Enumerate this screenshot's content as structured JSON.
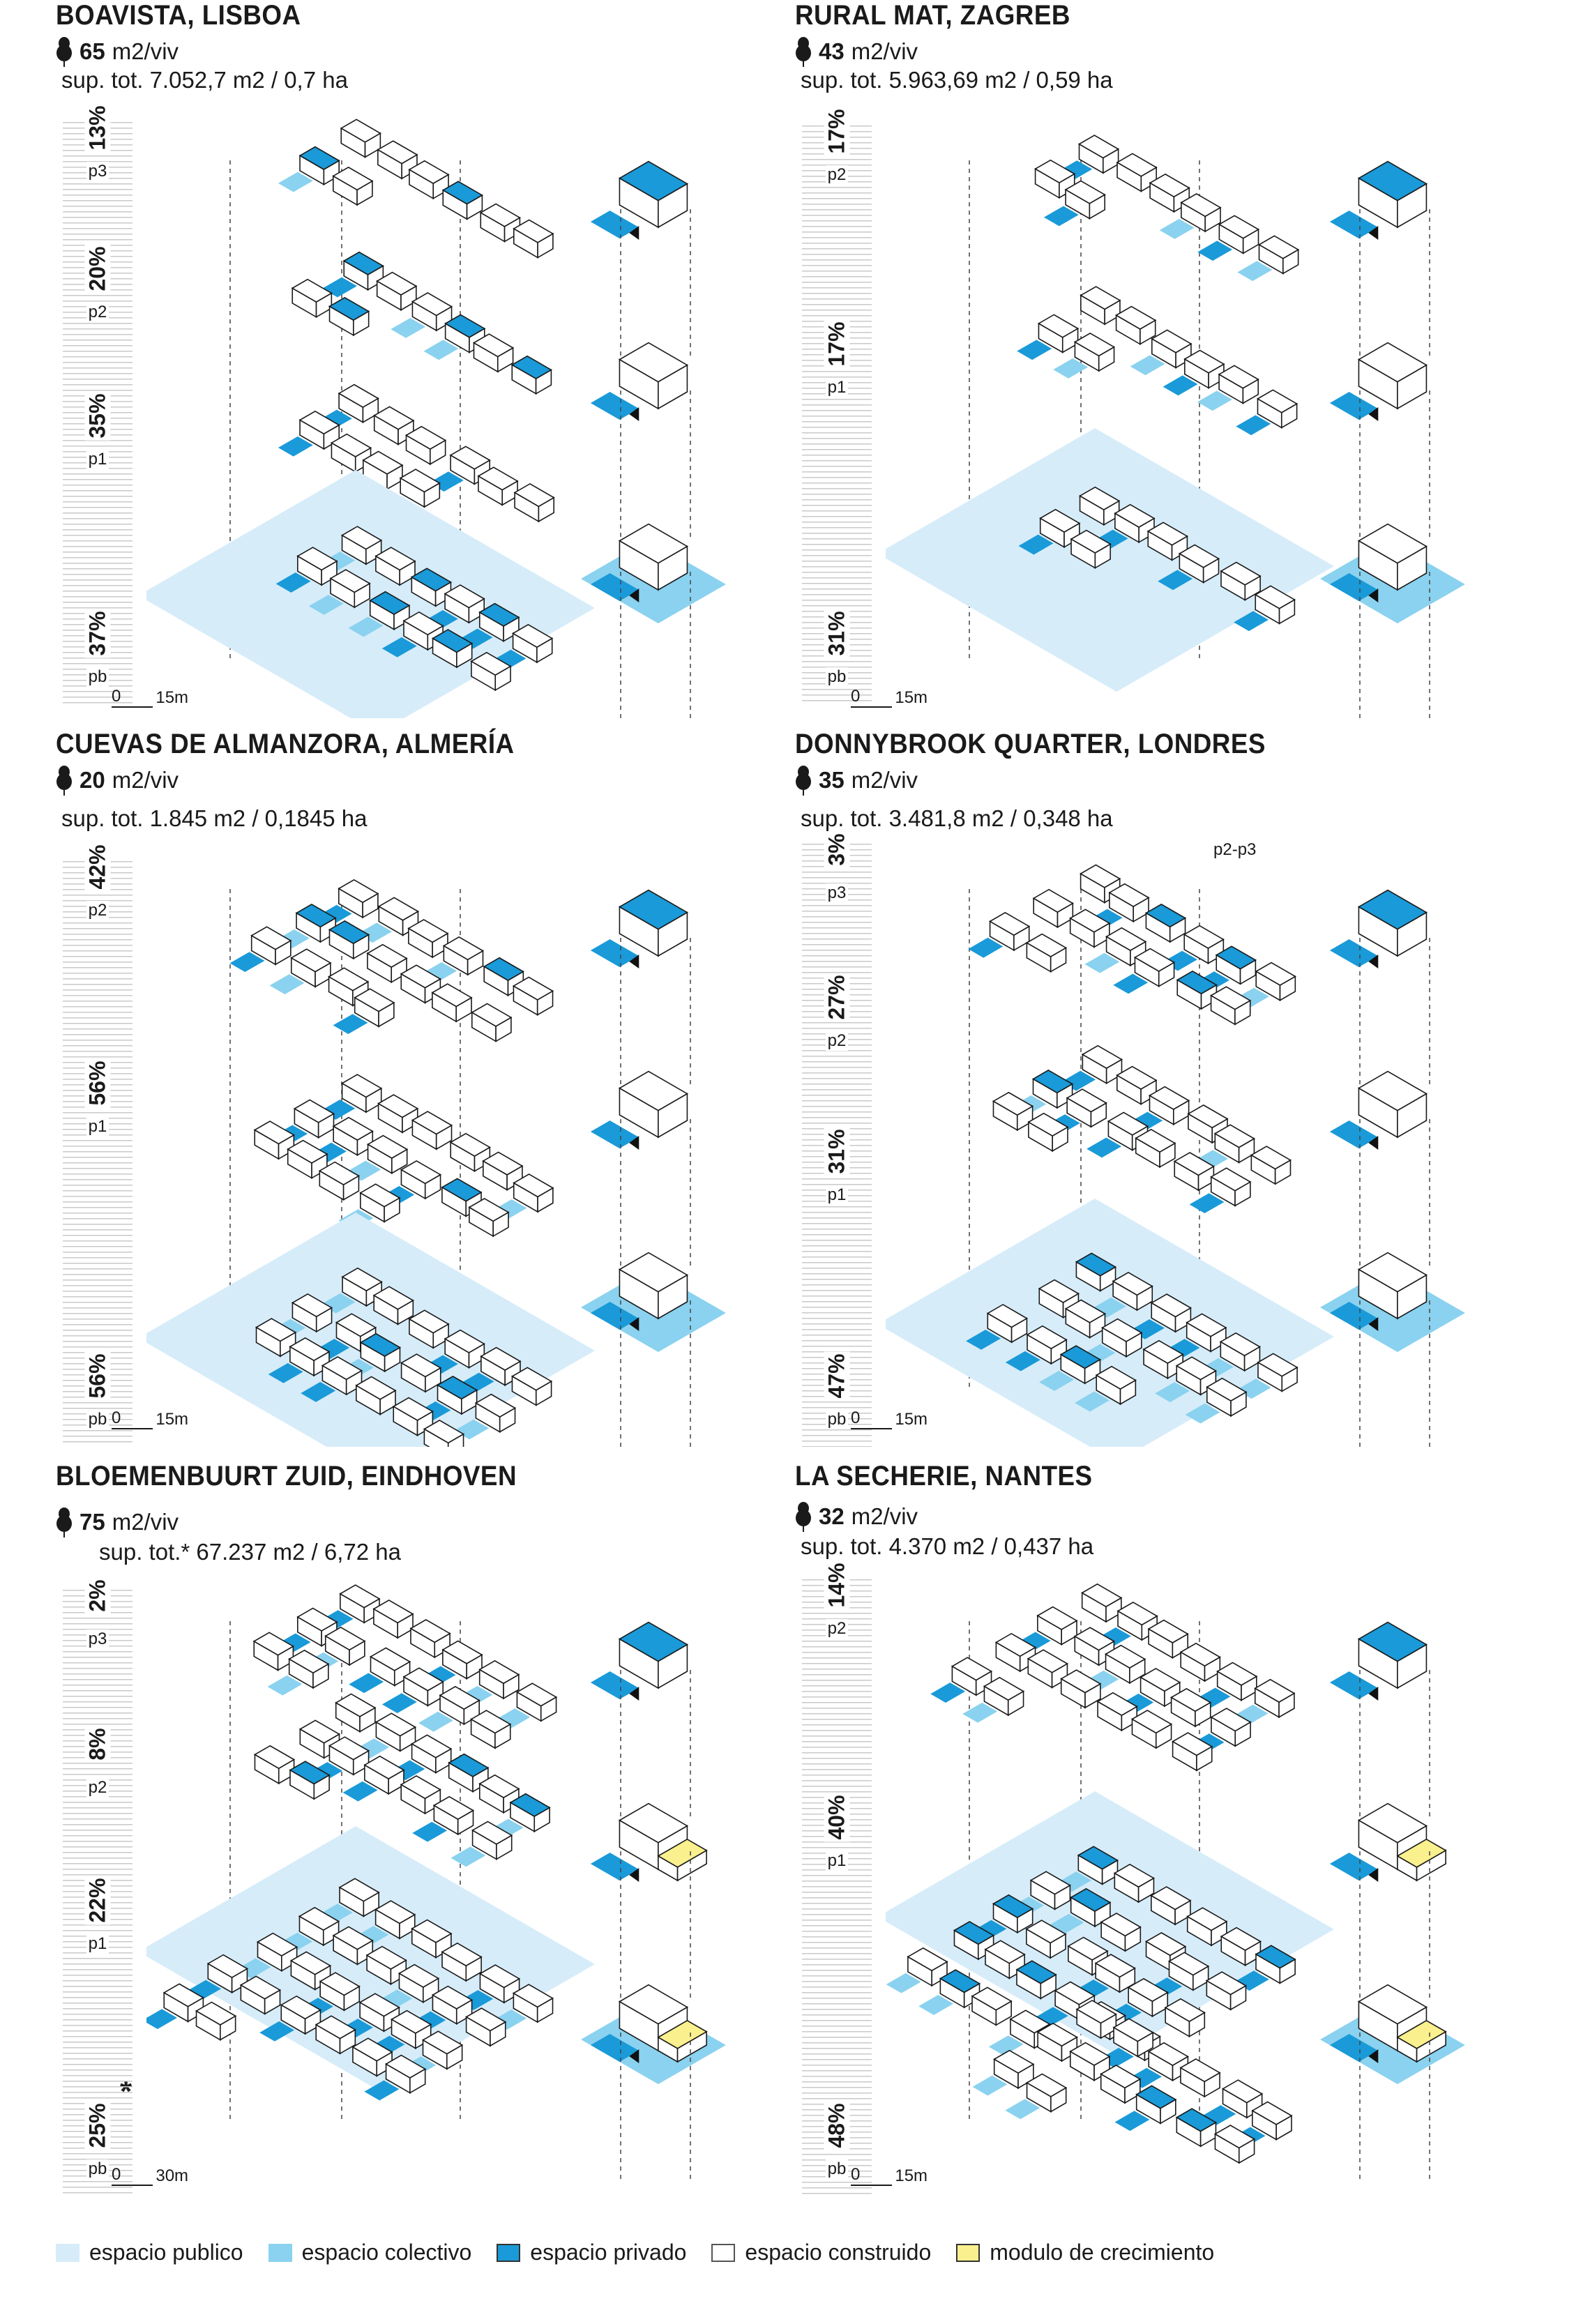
{
  "colors": {
    "publico": "#d6ecf9",
    "colectivo": "#8ad2ef",
    "privado": "#1a9ad8",
    "construido": "#ffffff",
    "crecimiento": "#faf08e",
    "line": "#1a1a1a"
  },
  "panels": [
    {
      "title": "BOAVISTA, LISBOA",
      "metric_value": "65",
      "metric_unit": "m2/viv",
      "sup": "sup. tot. 7.052,7 m2 / 0,7 ha",
      "floors": [
        {
          "pct": "13%",
          "label": "p3"
        },
        {
          "pct": "20%",
          "label": "p2"
        },
        {
          "pct": "35%",
          "label": "p1"
        },
        {
          "pct": "37%",
          "label": "pb"
        }
      ],
      "scale_zero": "0",
      "scale_len": "15m",
      "side_label": ""
    },
    {
      "title": "RURAL MAT, ZAGREB",
      "metric_value": "43",
      "metric_unit": "m2/viv",
      "sup": "sup. tot. 5.963,69 m2 / 0,59 ha",
      "floors": [
        {
          "pct": "17%",
          "label": "p2"
        },
        {
          "pct": "17%",
          "label": "p1"
        },
        {
          "pct": "31%",
          "label": "pb"
        }
      ],
      "scale_zero": "0",
      "scale_len": "15m",
      "side_label": ""
    },
    {
      "title": "CUEVAS DE ALMANZORA, ALMERÍA",
      "metric_value": "20",
      "metric_unit": "m2/viv",
      "sup": "sup. tot. 1.845 m2 / 0,1845 ha",
      "floors": [
        {
          "pct": "42%",
          "label": "p2"
        },
        {
          "pct": "56%",
          "label": "p1"
        },
        {
          "pct": "56%",
          "label": "pb"
        }
      ],
      "scale_zero": "0",
      "scale_len": "15m",
      "side_label": ""
    },
    {
      "title": "DONNYBROOK QUARTER, LONDRES",
      "metric_value": "35",
      "metric_unit": "m2/viv",
      "sup": "sup. tot. 3.481,8 m2 / 0,348 ha",
      "floors": [
        {
          "pct": "3%",
          "label": "p3"
        },
        {
          "pct": "27%",
          "label": "p2"
        },
        {
          "pct": "31%",
          "label": "p1"
        },
        {
          "pct": "47%",
          "label": "pb"
        }
      ],
      "scale_zero": "0",
      "scale_len": "15m",
      "side_label": "p2-p3"
    },
    {
      "title": "BLOEMENBUURT ZUID, EINDHOVEN",
      "metric_value": "75",
      "metric_unit": "m2/viv",
      "sup": "sup. tot.* 67.237 m2 / 6,72 ha",
      "floors": [
        {
          "pct": "2%",
          "label": "p3"
        },
        {
          "pct": "8%",
          "label": "p2"
        },
        {
          "pct": "22%",
          "label": "p1"
        },
        {
          "pct": "25%",
          "label": "pb"
        }
      ],
      "scale_zero": "0",
      "scale_len": "30m",
      "side_label": "*"
    },
    {
      "title": "LA SECHERIE, NANTES",
      "metric_value": "32",
      "metric_unit": "m2/viv",
      "sup": "sup. tot. 4.370 m2 / 0,437 ha",
      "floors": [
        {
          "pct": "14%",
          "label": "p2"
        },
        {
          "pct": "40%",
          "label": "p1"
        },
        {
          "pct": "48%",
          "label": "pb"
        }
      ],
      "scale_zero": "0",
      "scale_len": "15m",
      "side_label": ""
    }
  ],
  "legend": [
    {
      "key": "publico",
      "label": "espacio publico"
    },
    {
      "key": "colectivo",
      "label": "espacio colectivo"
    },
    {
      "key": "privado",
      "label": "espacio privado"
    },
    {
      "key": "construido",
      "label": "espacio construido"
    },
    {
      "key": "crecimiento",
      "label": "modulo de crecimiento"
    }
  ]
}
